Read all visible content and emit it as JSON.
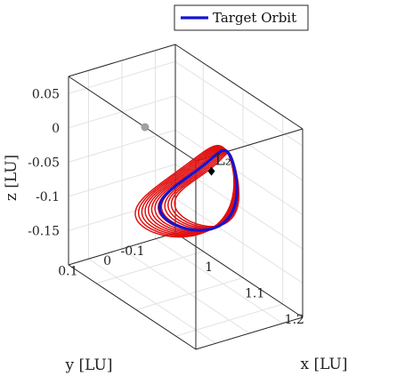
{
  "chart_data": {
    "type": "line",
    "projection": "3d",
    "grid": true,
    "legend_position": "top",
    "legend": [
      {
        "label": "Target Orbit",
        "color": "#1414d2"
      }
    ],
    "axes": {
      "x": {
        "label": "x [LU]",
        "ticks": [
          "1",
          "1.1",
          "1.2"
        ],
        "tick_values": [
          1.0,
          1.1,
          1.2
        ],
        "range": [
          0.93,
          1.25
        ]
      },
      "y": {
        "label": "y [LU]",
        "ticks": [
          "0.1",
          "0",
          "-0.1"
        ],
        "tick_values": [
          0.1,
          0.0,
          -0.1
        ],
        "range": [
          -0.16,
          0.16
        ]
      },
      "z": {
        "label": "z [LU]",
        "ticks": [
          "0.05",
          "0",
          "-0.05",
          "-0.1",
          "-0.15"
        ],
        "tick_values": [
          0.05,
          0.0,
          -0.05,
          -0.1,
          -0.15
        ],
        "range": [
          -0.2,
          0.075
        ]
      }
    },
    "series": [
      {
        "name": "Target Orbit",
        "color": "#1414d2",
        "style": "thick-line"
      },
      {
        "color": "#e01010",
        "style": "line",
        "family_count": 13
      }
    ],
    "points": [
      {
        "label": "L₂",
        "x": 1.155,
        "y": 0.0,
        "z": 0.0,
        "marker": "diamond",
        "color": "#000000"
      },
      {
        "label": "",
        "x": 0.988,
        "y": 0.0,
        "z": 0.0,
        "marker": "circle",
        "color": "#a0a0a0"
      }
    ]
  },
  "text": {
    "legend_label": "Target Orbit",
    "x_label": "x [LU]",
    "y_label": "y [LU]",
    "z_label": "z [LU]",
    "l2_label": "L₂",
    "z_ticks": [
      "0.05",
      "0",
      "-0.05",
      "-0.1",
      "-0.15"
    ],
    "y_ticks": [
      "0.1",
      "0",
      "-0.1"
    ],
    "x_ticks": [
      "1",
      "1.1",
      "1.2"
    ]
  }
}
